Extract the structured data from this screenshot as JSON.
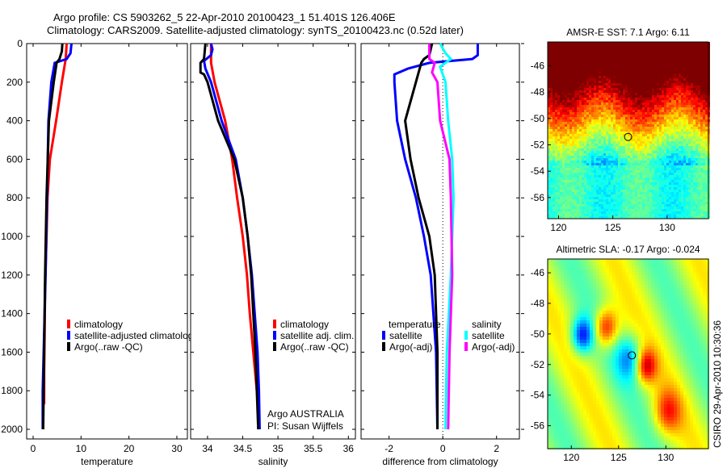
{
  "title_line1": "Argo profile: CS 5903262_5 22-Apr-2010 20100423_1 51.401S 126.406E",
  "title_line2": "Climatology: CARS2009. Satellite-adjusted climatology: synTS_20100423.nc (0.52d later)",
  "side_label": "CSIRO 29-Apr-2010 10:30:36",
  "credits": {
    "line1": "Argo AUSTRALIA",
    "line2": "PI: Susan Wijffels"
  },
  "chart_data": [
    {
      "type": "line",
      "xlabel": "temperature",
      "ylabel": "",
      "xlim": [
        -1.35,
        32.2
      ],
      "ylim": [
        2050,
        0
      ],
      "xticks": [
        "0",
        "10",
        "20",
        "30"
      ],
      "yticks": [
        "0",
        "200",
        "400",
        "600",
        "800",
        "1000",
        "1200",
        "1400",
        "1600",
        "1800",
        "2000"
      ],
      "legend": [
        "climatology",
        "satellite-adjusted climatology",
        "Argo(..raw -QC)"
      ],
      "series": [
        {
          "name": "climatology",
          "color": "#ff0000",
          "x": [
            7,
            6.8,
            6,
            4.8,
            3.5,
            3,
            2.8,
            2.5,
            2.4,
            2.3,
            2.3
          ],
          "y": [
            0,
            80,
            200,
            400,
            600,
            800,
            1000,
            1250,
            1500,
            1700,
            1870
          ]
        },
        {
          "name": "satellite-adjusted climatology",
          "color": "#0000ff",
          "x": [
            8,
            7.8,
            7,
            4.5,
            3.8,
            3.2,
            2.9,
            2.6,
            2.2,
            2,
            2
          ],
          "y": [
            0,
            50,
            80,
            100,
            200,
            400,
            800,
            1200,
            1600,
            1800,
            2000
          ]
        },
        {
          "name": "Argo(..raw -QC)",
          "color": "#000000",
          "x": [
            6.1,
            6,
            5.5,
            4.9,
            4.3,
            3.3,
            2.8,
            2.5,
            2.3,
            2.1
          ],
          "y": [
            0,
            40,
            80,
            100,
            200,
            400,
            800,
            1200,
            1600,
            2000
          ]
        }
      ]
    },
    {
      "type": "line",
      "xlabel": "salinity",
      "xlim": [
        33.76,
        36.1
      ],
      "ylim": [
        2050,
        0
      ],
      "xticks": [
        "34",
        "34.5",
        "35",
        "35.5",
        "36"
      ],
      "legend": [
        "climatology",
        "satellite adj. clim.",
        "Argo(..raw -QC)"
      ],
      "series": [
        {
          "name": "climatology",
          "color": "#ff0000",
          "x": [
            34.05,
            34.05,
            34.1,
            34.25,
            34.35,
            34.42,
            34.5,
            34.56,
            34.6,
            34.65,
            34.7,
            34.72
          ],
          "y": [
            0,
            100,
            200,
            400,
            600,
            800,
            1000,
            1200,
            1400,
            1600,
            1800,
            1870
          ]
        },
        {
          "name": "satellite adj. clim.",
          "color": "#0000ff",
          "x": [
            34.05,
            34.07,
            34.05,
            33.95,
            33.97,
            34.05,
            34.2,
            34.4,
            34.5,
            34.57,
            34.63,
            34.67,
            34.71,
            34.73,
            34.74
          ],
          "y": [
            0,
            30,
            60,
            90,
            130,
            200,
            400,
            600,
            800,
            1000,
            1200,
            1400,
            1600,
            1800,
            2000
          ]
        },
        {
          "name": "Argo(..raw -QC)",
          "color": "#000000",
          "x": [
            33.97,
            33.95,
            33.9,
            33.9,
            33.95,
            34.0,
            34.15,
            34.38,
            34.5,
            34.57,
            34.62,
            34.68,
            34.72
          ],
          "y": [
            0,
            80,
            100,
            150,
            160,
            200,
            400,
            600,
            800,
            1000,
            1200,
            1600,
            2000
          ]
        }
      ]
    },
    {
      "type": "line",
      "xlabel": "difference from climatology",
      "xlim": [
        -3.04,
        2.85
      ],
      "ylim": [
        2050,
        0
      ],
      "xticks": [
        "-2",
        "0",
        "2"
      ],
      "legend": {
        "temperature_title": "temperature",
        "salinity_title": "salinity",
        "items": [
          "satellite",
          "Argo(-adj)",
          "satellite",
          "Argo(-adj)"
        ]
      },
      "series": [
        {
          "name": "temperature satellite",
          "color": "#0000ff",
          "x": [
            1.3,
            1.3,
            1.1,
            -0.5,
            -1.3,
            -1.8,
            -1.8,
            -1.7,
            -1.4,
            -1.0,
            -0.7,
            -0.45,
            -0.25,
            -0.2
          ],
          "y": [
            0,
            60,
            80,
            100,
            130,
            160,
            200,
            400,
            600,
            800,
            1000,
            1200,
            1600,
            2000
          ]
        },
        {
          "name": "temperature Argo(-adj)",
          "color": "#000000",
          "x": [
            -0.4,
            -0.5,
            -0.7,
            -0.8,
            -1.0,
            -1.2,
            -1.4,
            -1.3,
            -1.2,
            -0.9,
            -0.5,
            -0.3,
            -0.2,
            -0.2
          ],
          "y": [
            0,
            60,
            80,
            100,
            200,
            300,
            400,
            500,
            600,
            800,
            1000,
            1200,
            1600,
            2000
          ]
        },
        {
          "name": "salinity satellite",
          "color": "#00ffff",
          "x": [
            -0.1,
            0.1,
            0.3,
            -0.1,
            0.1,
            0.2,
            0.35,
            0.4,
            0.35,
            0.3,
            0.15,
            0.1
          ],
          "y": [
            0,
            50,
            80,
            120,
            200,
            400,
            600,
            800,
            1000,
            1200,
            1600,
            2000
          ]
        },
        {
          "name": "salinity Argo(-adj)",
          "color": "#ff00ff",
          "x": [
            -0.5,
            -0.5,
            -0.3,
            -0.4,
            -0.2,
            -0.1,
            0.25,
            0.3,
            0.35,
            0.25,
            0.2
          ],
          "y": [
            0,
            80,
            100,
            150,
            200,
            400,
            600,
            800,
            1200,
            1600,
            2000
          ]
        }
      ]
    },
    {
      "type": "heatmap",
      "title": "AMSR-E SST: 7.1 Argo: 6.11",
      "xlim": [
        119,
        133.8
      ],
      "ylim": [
        -57.6,
        -44.2
      ],
      "xticks": [
        "120",
        "125",
        "130"
      ],
      "yticks": [
        "-46",
        "-48",
        "-50",
        "-52",
        "-54",
        "-56"
      ],
      "marker": [
        126.406,
        -51.401
      ]
    },
    {
      "type": "heatmap",
      "title": "Altimetric SLA: -0.17 Argo: -0.024",
      "xlim": [
        117.5,
        134.5
      ],
      "ylim": [
        -57.5,
        -45.1
      ],
      "xticks": [
        "120",
        "125",
        "130"
      ],
      "yticks": [
        "-46",
        "-48",
        "-50",
        "-52",
        "-54",
        "-56"
      ],
      "marker": [
        126.406,
        -51.401
      ]
    }
  ]
}
